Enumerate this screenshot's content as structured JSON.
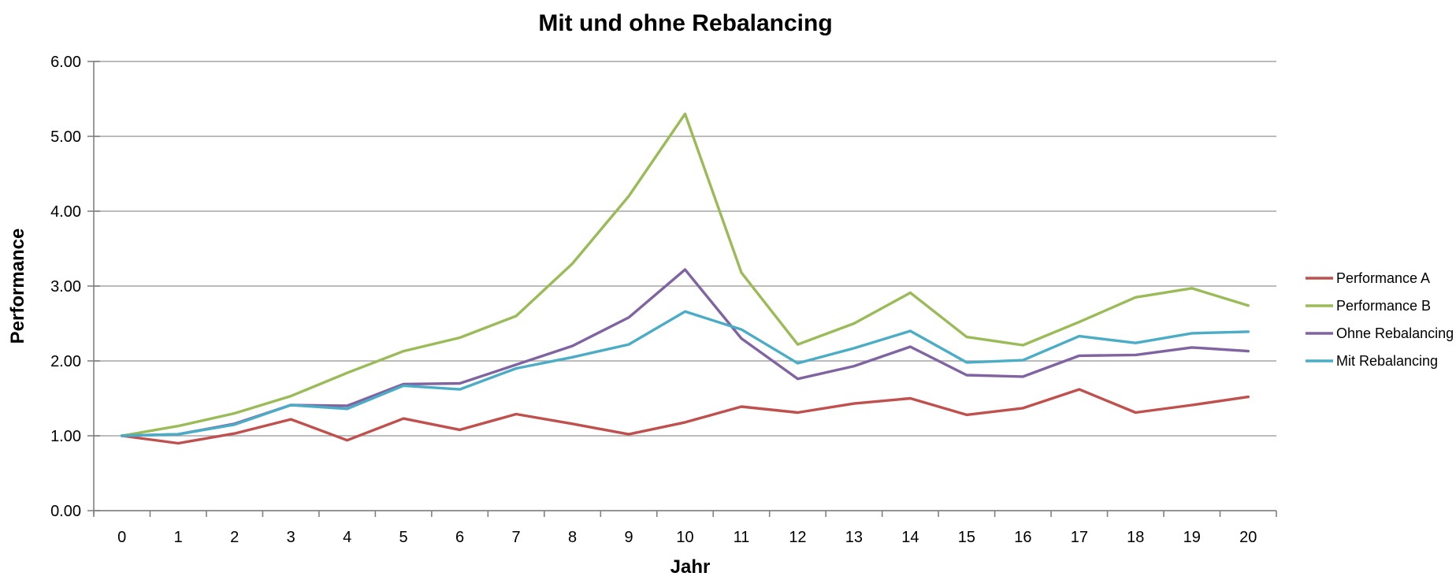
{
  "chart": {
    "title": "Mit und ohne Rebalancing",
    "x_axis_label": "Jahr",
    "y_axis_label": "Performance"
  },
  "colors": {
    "gridline": "#a6a6a6",
    "axis": "#808080",
    "text": "#000000",
    "background": "#ffffff"
  },
  "legend": {
    "position": "right"
  },
  "chart_data": {
    "type": "line",
    "title": "Mit und ohne Rebalancing",
    "xlabel": "Jahr",
    "ylabel": "Performance",
    "categories": [
      "0",
      "1",
      "2",
      "3",
      "4",
      "5",
      "6",
      "7",
      "8",
      "9",
      "10",
      "11",
      "12",
      "13",
      "14",
      "15",
      "16",
      "17",
      "18",
      "19",
      "20"
    ],
    "y_tick_labels": [
      "0.00",
      "1.00",
      "2.00",
      "3.00",
      "4.00",
      "5.00",
      "6.00"
    ],
    "ylim": [
      0,
      6
    ],
    "grid": true,
    "legend_position": "right",
    "series": [
      {
        "name": "Performance A",
        "color": "#c0504d",
        "values": [
          1.0,
          0.9,
          1.03,
          1.22,
          0.94,
          1.23,
          1.08,
          1.29,
          1.16,
          1.02,
          1.18,
          1.39,
          1.31,
          1.43,
          1.5,
          1.28,
          1.37,
          1.62,
          1.31,
          1.41,
          1.52
        ]
      },
      {
        "name": "Performance B",
        "color": "#9bbb59",
        "values": [
          1.0,
          1.13,
          1.3,
          1.53,
          1.84,
          2.13,
          2.31,
          2.6,
          3.3,
          4.2,
          5.3,
          3.18,
          2.22,
          2.5,
          2.91,
          2.32,
          2.21,
          2.52,
          2.85,
          2.97,
          2.74
        ]
      },
      {
        "name": "Ohne Rebalancing",
        "color": "#8064a2",
        "values": [
          1.0,
          1.02,
          1.16,
          1.41,
          1.4,
          1.69,
          1.7,
          1.95,
          2.2,
          2.58,
          3.22,
          2.3,
          1.76,
          1.93,
          2.19,
          1.81,
          1.79,
          2.07,
          2.08,
          2.18,
          2.13
        ]
      },
      {
        "name": "Mit Rebalancing",
        "color": "#4bacc6",
        "values": [
          1.0,
          1.02,
          1.15,
          1.41,
          1.36,
          1.67,
          1.62,
          1.9,
          2.05,
          2.22,
          2.66,
          2.42,
          1.97,
          2.17,
          2.4,
          1.98,
          2.01,
          2.33,
          2.24,
          2.37,
          2.39
        ]
      }
    ]
  }
}
